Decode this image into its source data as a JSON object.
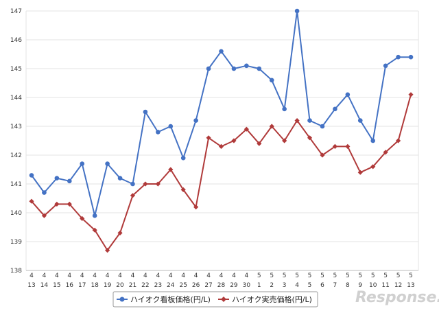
{
  "chart_data": {
    "type": "line",
    "title": "",
    "xlabel": "",
    "ylabel": "",
    "ylim": [
      138,
      147
    ],
    "y_ticks": [
      138,
      139,
      140,
      141,
      142,
      143,
      144,
      145,
      146,
      147
    ],
    "grid": true,
    "legend_position": "bottom",
    "categories": [
      {
        "month": "4",
        "day": "13"
      },
      {
        "month": "4",
        "day": "14"
      },
      {
        "month": "4",
        "day": "15"
      },
      {
        "month": "4",
        "day": "16"
      },
      {
        "month": "4",
        "day": "17"
      },
      {
        "month": "4",
        "day": "18"
      },
      {
        "month": "4",
        "day": "19"
      },
      {
        "month": "4",
        "day": "20"
      },
      {
        "month": "4",
        "day": "21"
      },
      {
        "month": "4",
        "day": "22"
      },
      {
        "month": "4",
        "day": "23"
      },
      {
        "month": "4",
        "day": "24"
      },
      {
        "month": "4",
        "day": "25"
      },
      {
        "month": "4",
        "day": "26"
      },
      {
        "month": "4",
        "day": "27"
      },
      {
        "month": "4",
        "day": "28"
      },
      {
        "month": "4",
        "day": "29"
      },
      {
        "month": "4",
        "day": "30"
      },
      {
        "month": "5",
        "day": "1"
      },
      {
        "month": "5",
        "day": "2"
      },
      {
        "month": "5",
        "day": "3"
      },
      {
        "month": "5",
        "day": "4"
      },
      {
        "month": "5",
        "day": "5"
      },
      {
        "month": "5",
        "day": "6"
      },
      {
        "month": "5",
        "day": "7"
      },
      {
        "month": "5",
        "day": "8"
      },
      {
        "month": "5",
        "day": "9"
      },
      {
        "month": "5",
        "day": "10"
      },
      {
        "month": "5",
        "day": "11"
      },
      {
        "month": "5",
        "day": "12"
      },
      {
        "month": "5",
        "day": "13"
      }
    ],
    "series": [
      {
        "name": "ハイオク看板価格(円/L)",
        "color": "#4472c4",
        "marker": "circle",
        "values": [
          141.3,
          140.7,
          141.2,
          141.1,
          141.7,
          139.9,
          141.7,
          141.2,
          141.0,
          143.5,
          142.8,
          143.0,
          141.9,
          143.2,
          145.0,
          145.6,
          145.0,
          145.1,
          145.0,
          144.6,
          143.6,
          147.0,
          143.2,
          143.0,
          143.6,
          144.1,
          143.2,
          142.5,
          145.1,
          145.4,
          145.4
        ]
      },
      {
        "name": "ハイオク実売価格(円/L)",
        "color": "#b03a3a",
        "marker": "diamond",
        "values": [
          140.4,
          139.9,
          140.3,
          140.3,
          139.8,
          139.4,
          138.7,
          139.3,
          140.6,
          141.0,
          141.0,
          141.5,
          140.8,
          140.2,
          142.6,
          142.3,
          142.5,
          142.9,
          142.4,
          143.0,
          142.5,
          143.2,
          142.6,
          142.0,
          142.3,
          142.3,
          141.4,
          141.6,
          142.1,
          142.5,
          144.1
        ]
      }
    ]
  },
  "watermark": "Response."
}
